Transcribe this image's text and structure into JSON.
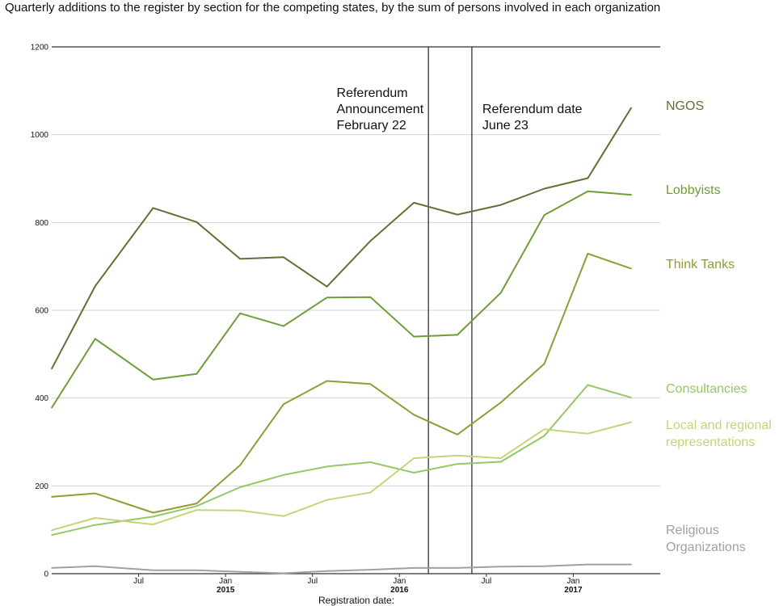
{
  "chart_data": {
    "type": "line",
    "title": "Quarterly additions to the register by section for the competing states, by the sum of persons involved in each organization",
    "xlabel": "Registration date:",
    "ylabel": "",
    "ylim": [
      0,
      1200
    ],
    "yticks": [
      0,
      200,
      400,
      600,
      800,
      1000,
      1200
    ],
    "xlim": [
      "2014-01",
      "2017-07"
    ],
    "xticks": [
      {
        "date": "2014-07",
        "label": "Jul",
        "year": ""
      },
      {
        "date": "2015-01",
        "label": "Jan",
        "year": "2015"
      },
      {
        "date": "2015-07",
        "label": "Jul",
        "year": ""
      },
      {
        "date": "2016-01",
        "label": "Jan",
        "year": "2016"
      },
      {
        "date": "2016-07",
        "label": "Jul",
        "year": ""
      },
      {
        "date": "2017-01",
        "label": "Jan",
        "year": "2017"
      }
    ],
    "grid": true,
    "x": [
      "2014-01",
      "2014-04",
      "2014-08",
      "2014-11",
      "2015-02",
      "2015-05",
      "2015-08",
      "2015-11",
      "2016-02",
      "2016-05",
      "2016-08",
      "2016-11",
      "2017-02",
      "2017-05"
    ],
    "series": [
      {
        "name": "NGOS",
        "label_lines": [
          "NGOS"
        ],
        "color": "#6b6b35",
        "values": [
          467,
          655,
          833,
          801,
          717,
          721,
          654,
          758,
          845,
          818,
          840,
          877,
          901,
          1061
        ]
      },
      {
        "name": "Lobbyists",
        "label_lines": [
          "Lobbyists"
        ],
        "color": "#6e9e37",
        "values": [
          378,
          535,
          442,
          455,
          593,
          564,
          629,
          630,
          540,
          544,
          640,
          817,
          871,
          863
        ]
      },
      {
        "name": "Think Tanks",
        "label_lines": [
          "Think Tanks"
        ],
        "color": "#949a35",
        "values": [
          175,
          183,
          139,
          160,
          247,
          386,
          439,
          432,
          362,
          317,
          390,
          478,
          729,
          695
        ]
      },
      {
        "name": "Consultancies",
        "label_lines": [
          "Consultancies"
        ],
        "color": "#94c865",
        "values": [
          88,
          111,
          130,
          154,
          197,
          225,
          244,
          254,
          230,
          250,
          255,
          314,
          430,
          401
        ]
      },
      {
        "name": "Local and regional representations",
        "label_lines": [
          "Local and regional",
          "representations"
        ],
        "color": "#c8d27a",
        "values": [
          99,
          127,
          112,
          145,
          144,
          131,
          168,
          185,
          263,
          269,
          263,
          329,
          319,
          345
        ]
      },
      {
        "name": "Religious Organizations",
        "label_lines": [
          "Religious",
          "Organizations"
        ],
        "color": "#a0a0a0",
        "values": [
          13,
          17,
          8,
          8,
          4,
          1,
          6,
          9,
          13,
          13,
          16,
          17,
          21,
          21
        ]
      }
    ],
    "annotations": [
      {
        "date": "2016-03",
        "lines": [
          "Referendum",
          "Announcement",
          "February 22"
        ]
      },
      {
        "date": "2016-06",
        "lines": [
          "Referendum date",
          "June 23"
        ]
      }
    ]
  }
}
